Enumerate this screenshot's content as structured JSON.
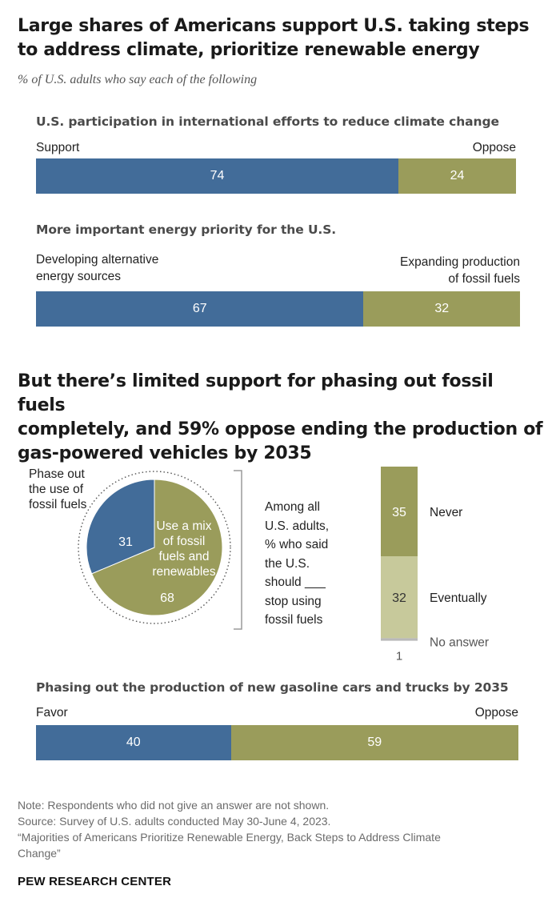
{
  "title_lines": [
    "Large shares of Americans support U.S. taking steps",
    "to address climate, prioritize renewable energy"
  ],
  "subtitle": "% of U.S. adults who say each of the following",
  "colors": {
    "blue": "#426c99",
    "olive": "#9a9c5b",
    "light_olive": "#c7c99b",
    "grey": "#b9b9b9"
  },
  "chart_data": [
    {
      "type": "bar",
      "title": "U.S. participation in international efforts to reduce climate change",
      "left_label": "Support",
      "right_label": "Oppose",
      "values": [
        74,
        24
      ]
    },
    {
      "type": "bar",
      "title": "More important energy priority for the U.S.",
      "left_label_lines": [
        "Developing alternative",
        "energy sources"
      ],
      "right_label_lines": [
        "Expanding production",
        "of fossil fuels"
      ],
      "values": [
        67,
        32
      ]
    },
    {
      "type": "pie",
      "heading_lines": [
        "But there’s limited support for phasing out fossil fuels",
        "completely, and 59% oppose ending the production of",
        "gas-powered vehicles by 2035"
      ],
      "slices": [
        {
          "label_lines": [
            "Phase out",
            "the use of",
            "fossil fuels"
          ],
          "value": 31
        },
        {
          "label_lines": [
            "Use a mix",
            "of fossil",
            "fuels and",
            "renewables"
          ],
          "value": 68
        }
      ],
      "bracket_text_lines": [
        "Among all",
        "U.S. adults,",
        "% who said",
        "the U.S.",
        "should ___",
        "stop using",
        "fossil fuels"
      ]
    },
    {
      "type": "bar",
      "orientation": "vertical-stacked",
      "segments": [
        {
          "label": "Never",
          "value": 35
        },
        {
          "label": "Eventually",
          "value": 32
        },
        {
          "label": "No answer",
          "value": 1
        }
      ]
    },
    {
      "type": "bar",
      "title": "Phasing out the production of new gasoline cars and trucks by 2035",
      "left_label": "Favor",
      "right_label": "Oppose",
      "values": [
        40,
        59
      ]
    }
  ],
  "notes": [
    "Note: Respondents who did not give an answer are not shown.",
    "Source: Survey of U.S. adults conducted May 30-June 4, 2023.",
    "“Majorities of Americans Prioritize Renewable Energy, Back Steps to Address Climate",
    "Change”"
  ],
  "source_org": "PEW RESEARCH CENTER"
}
